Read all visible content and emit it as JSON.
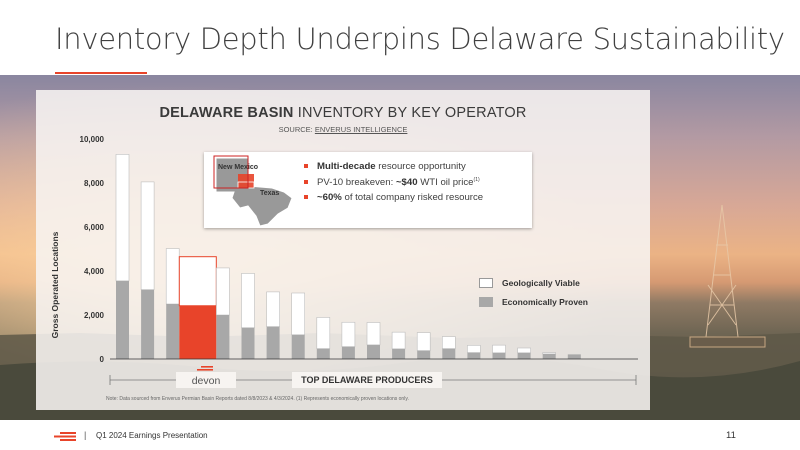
{
  "slide": {
    "title": "Inventory Depth Underpins Delaware Sustainability",
    "footer": "Q1 2024 Earnings Presentation",
    "page_number": "11",
    "accent_color": "#e8442a"
  },
  "chart": {
    "title_bold": "DELAWARE BASIN",
    "title_rest": "INVENTORY BY KEY OPERATOR",
    "source_prefix": "SOURCE:",
    "source_name": "ENVERUS INTELLIGENCE",
    "note": "Note: Data sourced from Enverus Permian Basin Reports dated 8/8/2023 & 4/3/2024. (1) Represents economically proven locations only.",
    "x_brand_label": "devon",
    "x_group_label": "TOP DELAWARE PRODUCERS"
  },
  "callout": {
    "map_label_nm": "New Mexico",
    "map_label_tx": "Texas",
    "bullet1_bold": "Multi-decade",
    "bullet1_rest": " resource opportunity",
    "bullet2_prefix": "PV-10 breakeven: ",
    "bullet2_bold": "~$40",
    "bullet2_rest": " WTI oil price",
    "bullet2_sup": "(1)",
    "bullet3_bold": "~60%",
    "bullet3_rest": " of total company risked resource"
  },
  "chart_data": {
    "type": "bar",
    "stacked": true,
    "ylabel": "Gross Operated Locations",
    "ylim": [
      0,
      10000
    ],
    "yticks": [
      "0",
      "2,000",
      "4,000",
      "6,000",
      "8,000",
      "10,000"
    ],
    "categories": [
      "",
      "",
      "",
      "devon",
      "",
      "",
      "",
      "",
      "",
      "",
      "",
      "",
      "",
      "",
      "",
      "",
      "",
      "",
      "",
      ""
    ],
    "highlight_index": 3,
    "series": [
      {
        "name": "Economically Proven",
        "color": "#a8a8a8",
        "highlight_color": "#e8442a",
        "values": [
          3550,
          3150,
          2500,
          2420,
          2000,
          1420,
          1470,
          1100,
          470,
          560,
          640,
          460,
          380,
          470,
          290,
          280,
          280,
          230,
          210,
          0
        ]
      },
      {
        "name": "Geologically Viable",
        "color": "#ffffff",
        "highlight_color": "#ffffff",
        "values": [
          5750,
          4900,
          2520,
          2230,
          2140,
          2470,
          1580,
          1900,
          1420,
          1110,
          1020,
          760,
          820,
          550,
          330,
          350,
          220,
          60,
          0,
          0
        ]
      }
    ],
    "legend_position": "right"
  }
}
